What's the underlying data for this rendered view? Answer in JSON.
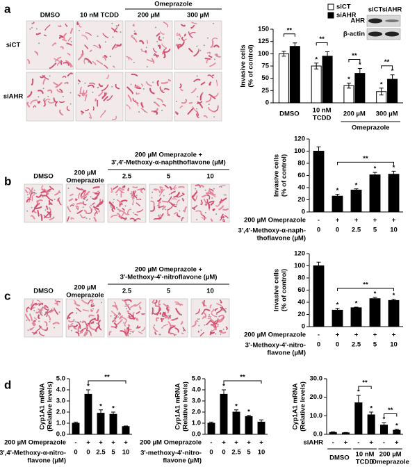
{
  "figure": {
    "panel_labels": [
      "a",
      "b",
      "c",
      "d"
    ],
    "a_images": {
      "columns": [
        "DMSO",
        "10 nM TCDD",
        "200 µM",
        "300 µM"
      ],
      "group": "Omeprazole",
      "rows": [
        "siCT",
        "siAHR"
      ]
    },
    "blot": {
      "lanes": [
        "siCT",
        "siAHR"
      ],
      "bands": [
        "AHR",
        "β-actin"
      ]
    },
    "b_images": {
      "header": "200 µM Omeprazole +\n3',4'-Methoxy-α-naphthoflavone (µM)",
      "columns": [
        "DMSO",
        "200 µM\nOmeprazole",
        "2.5",
        "5",
        "10"
      ]
    },
    "c_images": {
      "header": "200 µM Omeprazole +\n3'-Methoxy-4'-nitroflavone (µM)",
      "columns": [
        "DMSO",
        "200 µM\nOmeprazole",
        "2.5",
        "5",
        "10"
      ]
    }
  },
  "chart_data": [
    {
      "type": "bar",
      "y_label": "Invasive cells\n(% of control)",
      "categories": [
        "DMSO",
        "10 nM\nTCDD",
        "200 µM",
        "300 µM"
      ],
      "group_label": {
        "text": "Omeprazole",
        "from": 2,
        "to": 3
      },
      "series": [
        {
          "name": "siCT",
          "color": "#ffffff",
          "values": [
            100,
            75,
            35,
            23
          ],
          "errors": [
            5,
            6,
            5,
            7
          ],
          "stars": [
            null,
            "*",
            "*",
            "*"
          ]
        },
        {
          "name": "siAHR",
          "color": "#000000",
          "values": [
            115,
            95,
            60,
            48
          ],
          "errors": [
            7,
            9,
            10,
            9
          ],
          "stars": [
            null,
            null,
            "*",
            "*"
          ]
        }
      ],
      "brackets": [
        {
          "text": "**",
          "from": 0,
          "to": 1
        },
        {
          "text": "**",
          "from": 2,
          "to": 3
        },
        {
          "text": "**",
          "from": 4,
          "to": 5
        },
        {
          "text": "**",
          "from": 6,
          "to": 7
        }
      ],
      "legend": "top",
      "ylim": [
        0,
        150
      ],
      "yticks": [
        0,
        25,
        50,
        75,
        100,
        125,
        150
      ]
    },
    {
      "type": "bar",
      "y_label": "Invasive cells\n(% of control)",
      "color": "#000000",
      "values": [
        100,
        26,
        36,
        61,
        62
      ],
      "errors": [
        7,
        3,
        2,
        4,
        5
      ],
      "stars": [
        null,
        "*",
        "*",
        "*",
        "*"
      ],
      "brackets": [
        {
          "text": "**",
          "from": 1,
          "to": 4
        }
      ],
      "rows": [
        {
          "label": "200 µM Omeprazole",
          "marks": [
            "-",
            "+",
            "+",
            "+",
            "+"
          ]
        },
        {
          "label": "3',4'-Methoxy-α-naph-\nthoflavone (µM)",
          "marks": [
            "0",
            "0",
            "2.5",
            "5",
            "10"
          ]
        }
      ],
      "ylim": [
        0,
        120
      ],
      "yticks": [
        0,
        20,
        40,
        60,
        80,
        100,
        120
      ]
    },
    {
      "type": "bar",
      "y_label": "Invasive cells\n(% of control)",
      "color": "#000000",
      "values": [
        100,
        27,
        31,
        46,
        43
      ],
      "errors": [
        6,
        3,
        1,
        2,
        2
      ],
      "stars": [
        null,
        "*",
        "*",
        "*",
        "*"
      ],
      "brackets": [
        {
          "text": "**",
          "from": 1,
          "to": 4
        }
      ],
      "rows": [
        {
          "label": "200 µM Omeprazole",
          "marks": [
            "-",
            "+",
            "+",
            "+",
            "+"
          ]
        },
        {
          "label": "3'-Methoxy-4'-nitro-\nflavone (µM)",
          "marks": [
            "0",
            "0",
            "2.5",
            "5",
            "10"
          ]
        }
      ],
      "ylim": [
        0,
        120
      ],
      "yticks": [
        0,
        20,
        40,
        60,
        80,
        100,
        120
      ]
    },
    {
      "type": "bar",
      "y_label": "Cyp1A1 mRNA\n(Relative levels)",
      "color": "#000000",
      "values": [
        1.0,
        3.6,
        1.9,
        1.8,
        0.7
      ],
      "errors": [
        0.1,
        0.4,
        0.3,
        0.2,
        0.05
      ],
      "stars": [
        null,
        "*",
        "*",
        "*",
        null
      ],
      "brackets": [
        {
          "text": "**",
          "from": 1,
          "to": 4
        }
      ],
      "rows": [
        {
          "label": "200 µM Omeprazole",
          "marks": [
            "-",
            "+",
            "+",
            "+",
            "+"
          ]
        },
        {
          "label": "3',4'-Methoxy-α-nitro-\nflavone (µM)",
          "marks": [
            "0",
            "0",
            "2.5",
            "5",
            "10"
          ]
        }
      ],
      "ylim": [
        0,
        5
      ],
      "yticks": [
        {
          "value": 0,
          "label": "0.0"
        },
        {
          "value": 1,
          "label": "1.0"
        },
        {
          "value": 2,
          "label": "2.0"
        },
        {
          "value": 3,
          "label": "3.0"
        },
        {
          "value": 4,
          "label": "4.0"
        },
        {
          "value": 5,
          "label": "5.0"
        }
      ]
    },
    {
      "type": "bar",
      "y_label": "Cyp1A1 mRNA\n(Relative levels)",
      "color": "#000000",
      "values": [
        1.0,
        3.6,
        2.0,
        1.6,
        1.1
      ],
      "errors": [
        0.1,
        0.4,
        0.2,
        0.1,
        0.2
      ],
      "stars": [
        null,
        "*",
        "*",
        "*",
        null
      ],
      "brackets": [
        {
          "text": "**",
          "from": 1,
          "to": 4
        }
      ],
      "rows": [
        {
          "label": "200 µM Omeprazole",
          "marks": [
            "-",
            "+",
            "+",
            "+",
            "+"
          ]
        },
        {
          "label": "3'-methoxy-4'-nitro-\nflavone (µM)",
          "marks": [
            "0",
            "0",
            "2.5",
            "5",
            "10"
          ]
        }
      ],
      "ylim": [
        0,
        5
      ],
      "yticks": [
        {
          "value": 0,
          "label": "0.0"
        },
        {
          "value": 1,
          "label": "1.0"
        },
        {
          "value": 2,
          "label": "2.0"
        },
        {
          "value": 3,
          "label": "3.0"
        },
        {
          "value": 4,
          "label": "4.0"
        },
        {
          "value": 5,
          "label": "5.0"
        }
      ]
    },
    {
      "type": "bar",
      "y_label": "Cyp1A1 mRNA\n(Relative levels)",
      "color": "#000000",
      "values": [
        1.0,
        0.8,
        17,
        10.5,
        5,
        2.2
      ],
      "errors": [
        0.3,
        0.2,
        4,
        1.5,
        1.2,
        0.5
      ],
      "stars": [
        null,
        null,
        "*",
        "*",
        "*",
        "*"
      ],
      "brackets": [
        {
          "text": "**",
          "from": 2,
          "to": 3
        },
        {
          "text": "**",
          "from": 4,
          "to": 5
        }
      ],
      "rows": [
        {
          "label": "siAHR",
          "marks": [
            "-",
            "+",
            "-",
            "+",
            "-",
            "+"
          ]
        }
      ],
      "groups": [
        {
          "label": "DMSO",
          "bars": [
            0,
            1
          ]
        },
        {
          "label": "10 nM\nTCDD",
          "bars": [
            2,
            3
          ]
        },
        {
          "label": "200 µM\nOmeprazole",
          "bars": [
            4,
            5
          ]
        }
      ],
      "ylim": [
        0,
        30
      ],
      "yticks": [
        {
          "value": 0,
          "label": "0.0"
        },
        {
          "value": 10,
          "label": "10.0"
        },
        {
          "value": 20,
          "label": "20.0"
        },
        {
          "value": 30,
          "label": "30.0"
        }
      ]
    }
  ]
}
